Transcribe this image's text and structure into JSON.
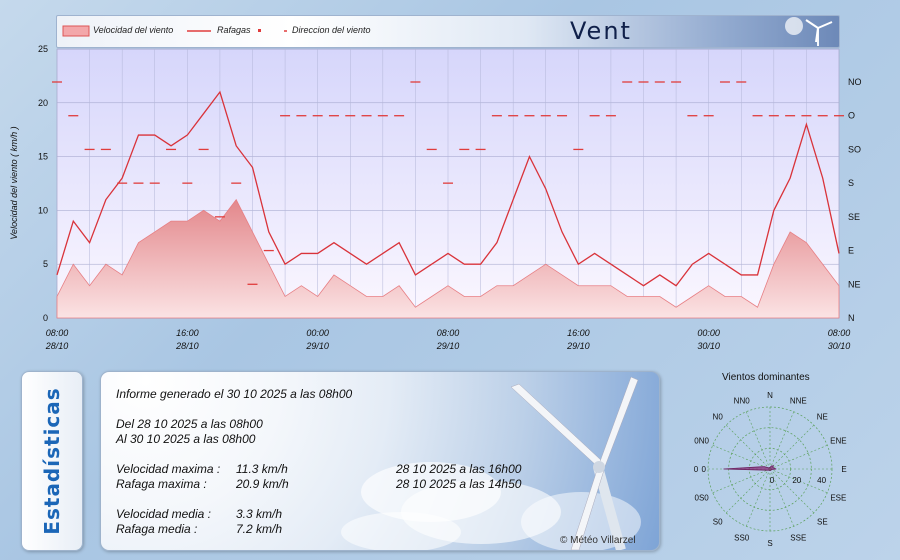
{
  "header": {
    "title": "Vent",
    "legend": [
      {
        "label": "Velocidad del viento",
        "color": "#e77f84"
      },
      {
        "label": "Rafagas",
        "color": "#e03c3c"
      },
      {
        "label": "Direccion del viento",
        "color": "#e03c3c"
      }
    ]
  },
  "chart_data": {
    "type": "area",
    "ylabel": "Velocidad del viento  ( km/h )",
    "ylim": [
      0,
      25
    ],
    "yticks": [
      0,
      5,
      10,
      15,
      20,
      25
    ],
    "right_axis_labels": [
      "N",
      "NE",
      "E",
      "SE",
      "S",
      "SO",
      "O",
      "NO"
    ],
    "x_tick_labels": [
      {
        "time": "08:00",
        "date": "28/10"
      },
      {
        "time": "16:00",
        "date": "28/10"
      },
      {
        "time": "00:00",
        "date": "29/10"
      },
      {
        "time": "08:00",
        "date": "29/10"
      },
      {
        "time": "16:00",
        "date": "29/10"
      },
      {
        "time": "00:00",
        "date": "30/10"
      },
      {
        "time": "08:00",
        "date": "30/10"
      }
    ],
    "x_hours": [
      0,
      1,
      2,
      3,
      4,
      5,
      6,
      7,
      8,
      9,
      10,
      11,
      12,
      13,
      14,
      15,
      16,
      17,
      18,
      19,
      20,
      21,
      22,
      23,
      24,
      25,
      26,
      27,
      28,
      29,
      30,
      31,
      32,
      33,
      34,
      35,
      36,
      37,
      38,
      39,
      40,
      41,
      42,
      43,
      44,
      45,
      46,
      47,
      48
    ],
    "series": [
      {
        "name": "Velocidad del viento",
        "values": [
          2,
          5,
          3,
          5,
          4,
          7,
          8,
          9,
          9,
          10,
          9,
          11,
          8,
          5,
          2,
          3,
          2,
          4,
          3,
          2,
          2,
          3,
          1,
          2,
          3,
          2,
          2,
          3,
          3,
          4,
          5,
          4,
          3,
          3,
          3,
          2,
          2,
          2,
          1,
          2,
          3,
          2,
          2,
          1,
          5,
          8,
          7,
          5,
          3
        ]
      },
      {
        "name": "Rafagas",
        "values": [
          4,
          9,
          7,
          11,
          13,
          17,
          17,
          16,
          17,
          19,
          21,
          16,
          14,
          8,
          5,
          6,
          6,
          7,
          6,
          5,
          6,
          7,
          4,
          5,
          6,
          5,
          5,
          7,
          11,
          15,
          12,
          8,
          5,
          6,
          5,
          4,
          3,
          4,
          3,
          5,
          6,
          5,
          4,
          4,
          10,
          13,
          18,
          13,
          6
        ]
      },
      {
        "name": "Direccion del viento",
        "values": [
          7,
          6,
          5,
          5,
          4,
          4,
          4,
          5,
          4,
          5,
          3,
          4,
          1,
          2,
          6,
          6,
          6,
          6,
          6,
          6,
          6,
          6,
          7,
          5,
          4,
          5,
          5,
          6,
          6,
          6,
          6,
          6,
          5,
          6,
          6,
          7,
          7,
          7,
          7,
          6,
          6,
          7,
          7,
          6,
          6,
          6,
          6,
          6,
          6
        ]
      }
    ]
  },
  "stats": {
    "tab_label": "Estadísticas",
    "report": "Informe generado el 30 10 2025 a las 08h00",
    "from": "Del 28 10 2025 a las 08h00",
    "to": "Al 30 10 2025 a las 08h00",
    "rows": [
      {
        "label": "Velocidad maxima :",
        "value": "11.3 km/h",
        "when": "28 10 2025 a las 16h00"
      },
      {
        "label": "Rafaga maxima :",
        "value": "20.9 km/h",
        "when": "28 10 2025 a las 14h50"
      },
      {
        "label": "Velocidad media :",
        "value": "3.3 km/h",
        "when": ""
      },
      {
        "label": "Rafaga media :",
        "value": "7.2 km/h",
        "when": ""
      }
    ],
    "credit": "© Météo Villarzel"
  },
  "rose": {
    "title": "Vientos dominantes",
    "directions": [
      "N",
      "NNE",
      "NE",
      "ENE",
      "E",
      "ESE",
      "SE",
      "SSE",
      "S",
      "SS0",
      "S0",
      "0S0",
      "0",
      "0N0",
      "N0",
      "NN0"
    ],
    "scale_labels": [
      "0",
      "20",
      "40"
    ],
    "side_label": "0",
    "frequencies": [
      1,
      2,
      3,
      2,
      4,
      1,
      1,
      1,
      1,
      1,
      1,
      2,
      30,
      4,
      1,
      1
    ]
  }
}
